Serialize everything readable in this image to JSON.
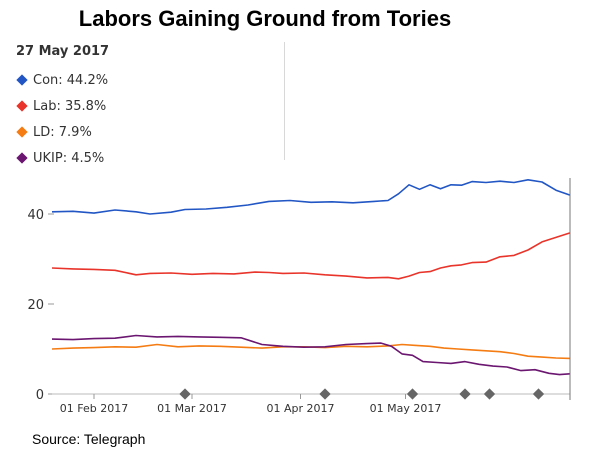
{
  "chart_data": {
    "type": "line",
    "title": "Labors Gaining Ground from Tories",
    "date_label": "27 May 2017",
    "source": "Source: Telegraph",
    "ylim": [
      0,
      50
    ],
    "yticks": [
      0,
      20,
      40
    ],
    "x_range": [
      0,
      148
    ],
    "x_ticks": [
      {
        "label": "01 Feb 2017",
        "x": 12
      },
      {
        "label": "01 Mar 2017",
        "x": 40
      },
      {
        "label": "01 Apr 2017",
        "x": 71
      },
      {
        "label": "01 May 2017",
        "x": 101
      }
    ],
    "event_markers": [
      38,
      78,
      103,
      118,
      125,
      139
    ],
    "legend": [
      {
        "label": "Con: 44.2%",
        "color": "#2156c4"
      },
      {
        "label": "Lab: 35.8%",
        "color": "#e8342a"
      },
      {
        "label": "LD: 7.9%",
        "color": "#f47c13"
      },
      {
        "label": "UKIP: 4.5%",
        "color": "#6b1670"
      }
    ],
    "series": [
      {
        "name": "Con",
        "color": "#2156c4",
        "x": [
          0,
          6,
          12,
          18,
          24,
          28,
          34,
          38,
          44,
          50,
          56,
          62,
          68,
          74,
          80,
          86,
          92,
          96,
          99,
          102,
          105,
          108,
          111,
          114,
          117,
          120,
          124,
          128,
          132,
          136,
          140,
          144,
          148
        ],
        "values": [
          40.5,
          40.6,
          40.2,
          40.9,
          40.5,
          40,
          40.4,
          41,
          41.1,
          41.5,
          42,
          42.8,
          43,
          42.6,
          42.7,
          42.5,
          42.8,
          43,
          44.5,
          46.5,
          45.5,
          46.5,
          45.6,
          46.5,
          46.4,
          47.2,
          47,
          47.3,
          47,
          47.6,
          47.1,
          45.3,
          44.2
        ]
      },
      {
        "name": "Lab",
        "color": "#e8342a",
        "x": [
          0,
          6,
          12,
          18,
          24,
          28,
          34,
          40,
          46,
          52,
          58,
          62,
          66,
          72,
          78,
          84,
          90,
          96,
          99,
          102,
          105,
          108,
          111,
          114,
          117,
          120,
          124,
          128,
          132,
          136,
          140,
          144,
          148
        ],
        "values": [
          28,
          27.8,
          27.7,
          27.5,
          26.5,
          26.8,
          26.9,
          26.6,
          26.8,
          26.7,
          27.1,
          27,
          26.8,
          26.9,
          26.5,
          26.2,
          25.8,
          25.9,
          25.6,
          26.2,
          27,
          27.2,
          28,
          28.5,
          28.7,
          29.2,
          29.3,
          30.5,
          30.8,
          32,
          33.8,
          34.8,
          35.8
        ]
      },
      {
        "name": "LD",
        "color": "#f47c13",
        "x": [
          0,
          6,
          12,
          18,
          24,
          30,
          36,
          42,
          48,
          54,
          60,
          66,
          72,
          78,
          84,
          90,
          96,
          100,
          104,
          108,
          112,
          116,
          120,
          124,
          128,
          132,
          136,
          140,
          144,
          148
        ],
        "values": [
          10,
          10.2,
          10.3,
          10.5,
          10.4,
          11,
          10.5,
          10.7,
          10.6,
          10.4,
          10.2,
          10.5,
          10.5,
          10.3,
          10.6,
          10.5,
          10.7,
          11,
          10.8,
          10.6,
          10.2,
          10,
          9.8,
          9.6,
          9.4,
          9,
          8.4,
          8.2,
          8,
          7.9
        ]
      },
      {
        "name": "UKIP",
        "color": "#6b1670",
        "x": [
          0,
          6,
          12,
          18,
          24,
          30,
          36,
          42,
          48,
          54,
          60,
          66,
          72,
          78,
          84,
          90,
          94,
          97,
          100,
          103,
          106,
          110,
          114,
          118,
          122,
          126,
          130,
          134,
          138,
          142,
          145,
          148
        ],
        "values": [
          12.2,
          12.1,
          12.3,
          12.4,
          13,
          12.7,
          12.8,
          12.7,
          12.6,
          12.5,
          11,
          10.6,
          10.4,
          10.5,
          11,
          11.2,
          11.3,
          10.6,
          8.9,
          8.6,
          7.2,
          7,
          6.8,
          7.2,
          6.6,
          6.2,
          6,
          5.2,
          5.4,
          4.6,
          4.3,
          4.5
        ]
      }
    ]
  }
}
